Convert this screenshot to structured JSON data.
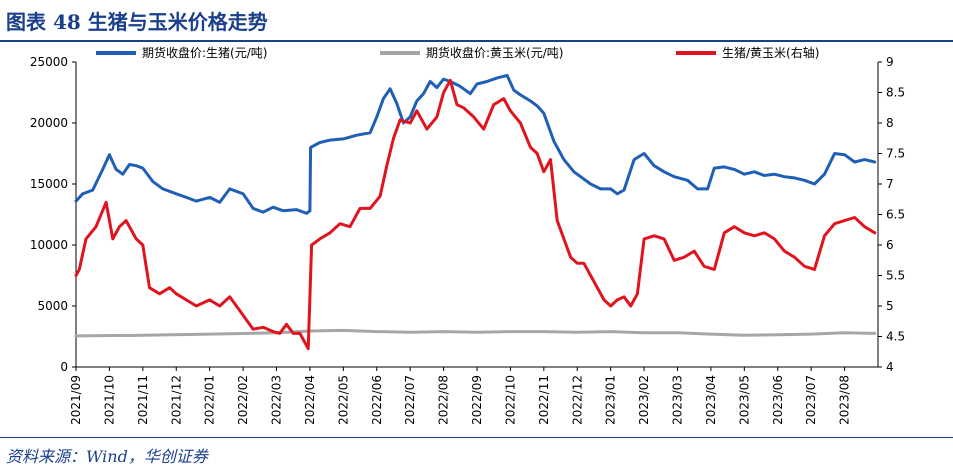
{
  "header": {
    "title": "图表 48  生猪与玉米价格走势"
  },
  "footer": {
    "source": "资料来源：Wind，华创证券"
  },
  "colors": {
    "hog": "#1f5fb5",
    "corn": "#a6a6a6",
    "ratio": "#e0141e",
    "title": "#1a3f8c"
  },
  "chart_data": {
    "type": "line",
    "title": "",
    "xlabel": "",
    "ylabel": "",
    "y_left_lim": [
      0,
      25000
    ],
    "y_left_ticks": [
      "0",
      "5000",
      "10000",
      "15000",
      "20000",
      "25000"
    ],
    "y_right_lim": [
      4,
      9
    ],
    "y_right_ticks": [
      "4",
      "4.5",
      "5",
      "5.5",
      "6",
      "6.5",
      "7",
      "7.5",
      "8",
      "8.5",
      "9"
    ],
    "x_ticks": [
      "2021/09",
      "2021/10",
      "2021/11",
      "2021/12",
      "2022/01",
      "2022/02",
      "2022/03",
      "2022/04",
      "2022/05",
      "2022/06",
      "2022/07",
      "2022/08",
      "2022/09",
      "2022/10",
      "2022/11",
      "2022/12",
      "2023/01",
      "2023/02",
      "2023/03",
      "2023/04",
      "2023/05",
      "2023/06",
      "2023/07",
      "2023/08"
    ],
    "legend": [
      "期货收盘价:生猪(元/吨)",
      "期货收盘价:黄玉米(元/吨)",
      "生猪/黄玉米(右轴)"
    ],
    "legend_position": "top",
    "grid": false,
    "series": [
      {
        "name": "期货收盘价:生猪(元/吨)",
        "axis": "left",
        "x": [
          0,
          0.2,
          0.5,
          0.8,
          1.0,
          1.2,
          1.4,
          1.6,
          1.8,
          2.0,
          2.3,
          2.6,
          3.0,
          3.3,
          3.6,
          4.0,
          4.3,
          4.6,
          5.0,
          5.3,
          5.6,
          5.9,
          6.2,
          6.6,
          6.9,
          7.0,
          7.02,
          7.3,
          7.6,
          8.0,
          8.4,
          8.8,
          9.0,
          9.2,
          9.4,
          9.6,
          9.8,
          10.0,
          10.2,
          10.4,
          10.6,
          10.8,
          11.0,
          11.2,
          11.5,
          11.8,
          12.0,
          12.3,
          12.6,
          12.9,
          13.1,
          13.3,
          13.6,
          13.8,
          14.0,
          14.3,
          14.6,
          14.9,
          15.1,
          15.4,
          15.7,
          16.0,
          16.2,
          16.4,
          16.7,
          17.0,
          17.3,
          17.6,
          17.9,
          18.3,
          18.6,
          18.9,
          19.1,
          19.4,
          19.7,
          20.0,
          20.3,
          20.6,
          20.9,
          21.2,
          21.5,
          21.8,
          22.1,
          22.4,
          22.7,
          23.0,
          23.3,
          23.6,
          23.9
        ],
        "values": [
          13600,
          14200,
          14500,
          16200,
          17400,
          16200,
          15800,
          16600,
          16500,
          16300,
          15200,
          14600,
          14200,
          13900,
          13600,
          13900,
          13500,
          14600,
          14200,
          13000,
          12700,
          13100,
          12800,
          12900,
          12600,
          12800,
          18000,
          18400,
          18600,
          18700,
          19000,
          19200,
          20500,
          22000,
          22800,
          21600,
          20000,
          20500,
          21800,
          22400,
          23400,
          22900,
          23600,
          23400,
          23000,
          22400,
          23200,
          23400,
          23700,
          23900,
          22700,
          22300,
          21800,
          21400,
          20800,
          18500,
          17000,
          16000,
          15600,
          15000,
          14600,
          14600,
          14200,
          14500,
          17000,
          17500,
          16500,
          16000,
          15600,
          15300,
          14600,
          14600,
          16300,
          16400,
          16200,
          15800,
          16000,
          15700,
          15800,
          15600,
          15500,
          15300,
          15000,
          15800,
          17500,
          17400,
          16800,
          17000,
          16800
        ]
      },
      {
        "name": "期货收盘价:黄玉米(元/吨)",
        "axis": "left",
        "x": [
          0,
          2,
          4,
          6,
          7,
          8,
          9,
          10,
          11,
          12,
          13,
          14,
          15,
          16,
          17,
          18,
          19,
          20,
          21,
          22,
          23,
          23.9
        ],
        "values": [
          2550,
          2600,
          2700,
          2800,
          2950,
          3000,
          2900,
          2850,
          2900,
          2850,
          2900,
          2900,
          2850,
          2900,
          2800,
          2800,
          2700,
          2600,
          2650,
          2700,
          2800,
          2750
        ]
      },
      {
        "name": "生猪/黄玉米(右轴)",
        "axis": "right",
        "x": [
          0,
          0.1,
          0.3,
          0.6,
          0.9,
          1.1,
          1.3,
          1.5,
          1.8,
          2.0,
          2.2,
          2.5,
          2.8,
          3.0,
          3.3,
          3.6,
          4.0,
          4.3,
          4.6,
          5.0,
          5.3,
          5.6,
          5.9,
          6.1,
          6.3,
          6.5,
          6.7,
          6.9,
          6.95,
          7.05,
          7.3,
          7.6,
          7.9,
          8.2,
          8.5,
          8.8,
          9.1,
          9.3,
          9.5,
          9.7,
          10.0,
          10.2,
          10.5,
          10.8,
          11.0,
          11.2,
          11.4,
          11.6,
          11.9,
          12.2,
          12.5,
          12.8,
          13.0,
          13.3,
          13.6,
          13.8,
          14.0,
          14.2,
          14.4,
          14.6,
          14.8,
          15.0,
          15.2,
          15.5,
          15.8,
          16.0,
          16.2,
          16.4,
          16.6,
          16.8,
          17.0,
          17.3,
          17.6,
          17.9,
          18.2,
          18.5,
          18.8,
          19.1,
          19.4,
          19.7,
          20.0,
          20.3,
          20.6,
          20.9,
          21.2,
          21.5,
          21.8,
          22.1,
          22.4,
          22.7,
          23.0,
          23.3,
          23.6,
          23.9
        ],
        "values": [
          5.5,
          5.6,
          6.1,
          6.3,
          6.7,
          6.1,
          6.3,
          6.4,
          6.1,
          6.0,
          5.3,
          5.2,
          5.3,
          5.2,
          5.1,
          5.0,
          5.1,
          5.0,
          5.15,
          4.85,
          4.62,
          4.65,
          4.58,
          4.55,
          4.7,
          4.55,
          4.55,
          4.35,
          4.3,
          6.0,
          6.1,
          6.2,
          6.35,
          6.3,
          6.6,
          6.6,
          6.8,
          7.3,
          7.75,
          8.05,
          8.0,
          8.2,
          7.9,
          8.1,
          8.5,
          8.7,
          8.3,
          8.25,
          8.1,
          7.9,
          8.3,
          8.4,
          8.2,
          8.0,
          7.6,
          7.5,
          7.2,
          7.4,
          6.4,
          6.1,
          5.8,
          5.7,
          5.7,
          5.4,
          5.1,
          5.0,
          5.1,
          5.15,
          5.0,
          5.2,
          6.1,
          6.15,
          6.1,
          5.75,
          5.8,
          5.9,
          5.65,
          5.6,
          6.2,
          6.3,
          6.2,
          6.15,
          6.2,
          6.1,
          5.9,
          5.8,
          5.65,
          5.6,
          6.15,
          6.35,
          6.4,
          6.45,
          6.3,
          6.2
        ]
      }
    ]
  }
}
